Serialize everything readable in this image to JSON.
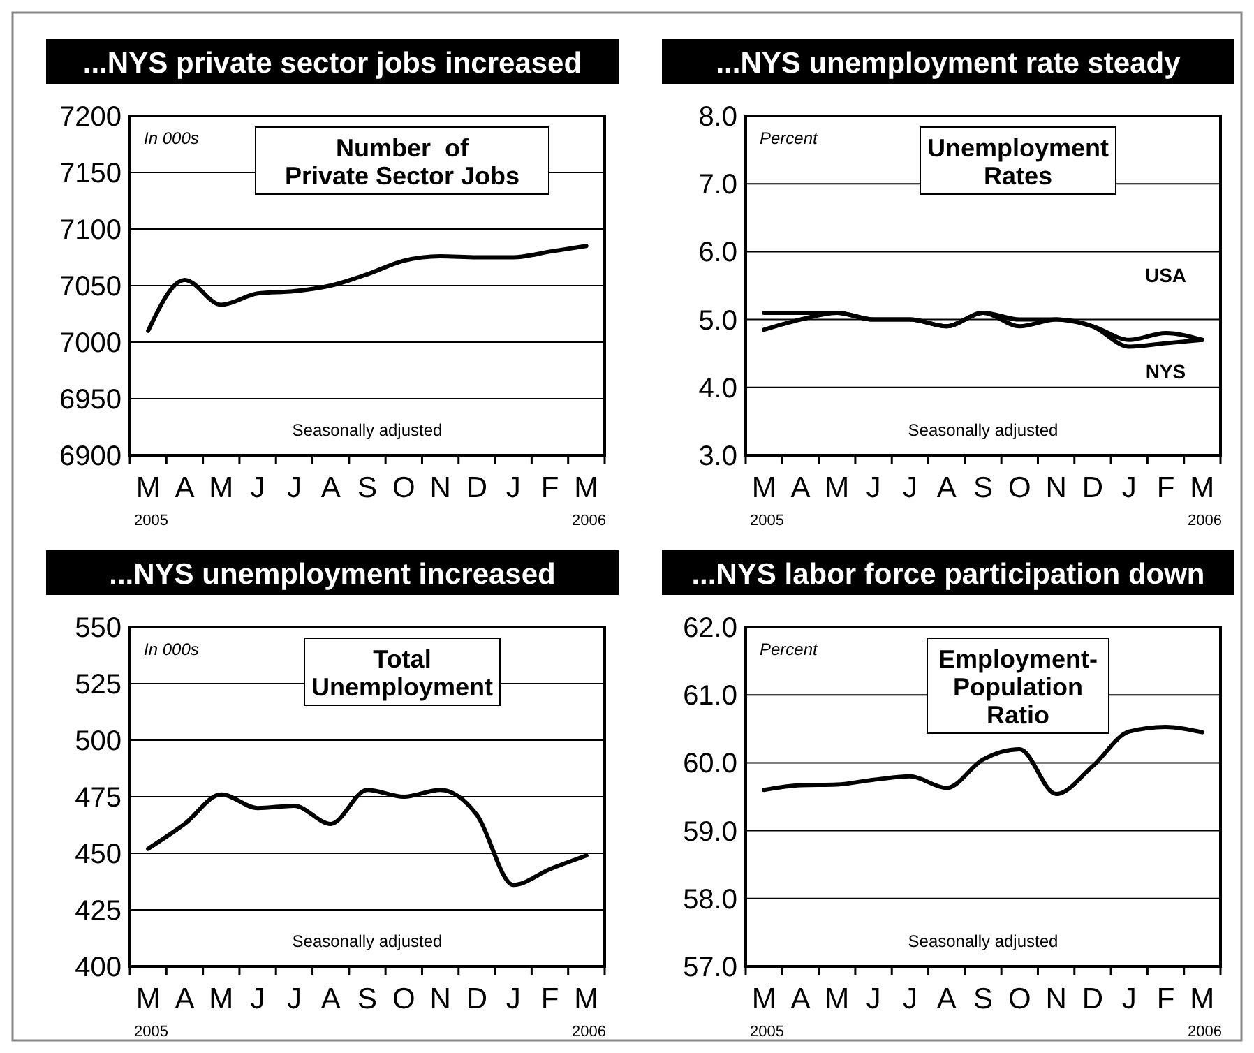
{
  "chart_data": [
    {
      "type": "line",
      "title": "...NYS private sector jobs increased",
      "subtitle": "Number  of\nPrivate Sector Jobs",
      "ylabel": "In 000s",
      "categories": [
        "M",
        "A",
        "M",
        "J",
        "J",
        "A",
        "S",
        "O",
        "N",
        "D",
        "J",
        "F",
        "M"
      ],
      "series": [
        {
          "color": "#000000",
          "values": [
            7010,
            7055,
            7033,
            7043,
            7045,
            7050,
            7060,
            7072,
            7076,
            7075,
            7075,
            7080,
            7085
          ]
        }
      ],
      "ylim": [
        6900,
        7200
      ],
      "yticks": [
        6900,
        6950,
        7000,
        7050,
        7100,
        7150,
        7200
      ],
      "grid": "y",
      "annotations": [
        "Seasonally adjusted",
        "2005",
        "2006"
      ]
    },
    {
      "type": "line",
      "title": "...NYS unemployment rate steady",
      "subtitle": "Unemployment\nRates",
      "ylabel": "Percent",
      "categories": [
        "M",
        "A",
        "M",
        "J",
        "J",
        "A",
        "S",
        "O",
        "N",
        "D",
        "J",
        "F",
        "M"
      ],
      "series": [
        {
          "name": "USA",
          "color": "#000000",
          "values": [
            5.1,
            5.1,
            5.1,
            5.0,
            5.0,
            4.9,
            5.1,
            5.0,
            5.0,
            4.9,
            4.7,
            4.8,
            4.7
          ]
        },
        {
          "name": "NYS",
          "color": "#000000",
          "values": [
            4.85,
            5.0,
            5.1,
            5.0,
            5.0,
            4.9,
            5.1,
            4.9,
            5.0,
            4.9,
            4.6,
            4.65,
            4.7
          ]
        }
      ],
      "ylim": [
        3,
        8
      ],
      "yticks": [
        {
          "value": 3,
          "label": "3.0"
        },
        {
          "value": 4,
          "label": "4.0"
        },
        {
          "value": 5,
          "label": "5.0"
        },
        {
          "value": 6,
          "label": "6.0"
        },
        {
          "value": 7,
          "label": "7.0"
        },
        {
          "value": 8,
          "label": "8.0"
        }
      ],
      "grid": "y",
      "annotations": [
        "Seasonally adjusted",
        "2005",
        "2006"
      ]
    },
    {
      "type": "line",
      "title": "...NYS unemployment increased",
      "subtitle": "Total\nUnemployment",
      "ylabel": "In 000s",
      "categories": [
        "M",
        "A",
        "M",
        "J",
        "J",
        "A",
        "S",
        "O",
        "N",
        "D",
        "J",
        "F",
        "M"
      ],
      "series": [
        {
          "color": "#000000",
          "values": [
            452,
            463,
            476,
            470,
            471,
            463,
            478,
            475,
            478,
            467,
            436,
            443,
            449
          ]
        }
      ],
      "ylim": [
        400,
        550
      ],
      "yticks": [
        400,
        425,
        450,
        475,
        500,
        525,
        550
      ],
      "grid": "y",
      "annotations": [
        "Seasonally adjusted",
        "2005",
        "2006"
      ]
    },
    {
      "type": "line",
      "title": "...NYS labor force participation down",
      "subtitle": "Employment-\nPopulation\nRatio",
      "ylabel": "Percent",
      "categories": [
        "M",
        "A",
        "M",
        "J",
        "J",
        "A",
        "S",
        "O",
        "N",
        "D",
        "J",
        "F",
        "M"
      ],
      "series": [
        {
          "color": "#000000",
          "values": [
            59.6,
            59.67,
            59.68,
            59.75,
            59.8,
            59.63,
            60.05,
            60.2,
            59.54,
            59.95,
            60.46,
            60.53,
            60.45
          ]
        }
      ],
      "ylim": [
        57,
        62
      ],
      "yticks": [
        {
          "value": 57,
          "label": "57.0"
        },
        {
          "value": 58,
          "label": "58.0"
        },
        {
          "value": 59,
          "label": "59.0"
        },
        {
          "value": 60,
          "label": "60.0"
        },
        {
          "value": 61,
          "label": "61.0"
        },
        {
          "value": 62,
          "label": "62.0"
        }
      ],
      "grid": "y",
      "annotations": [
        "Seasonally adjusted",
        "2005",
        "2006"
      ]
    }
  ]
}
